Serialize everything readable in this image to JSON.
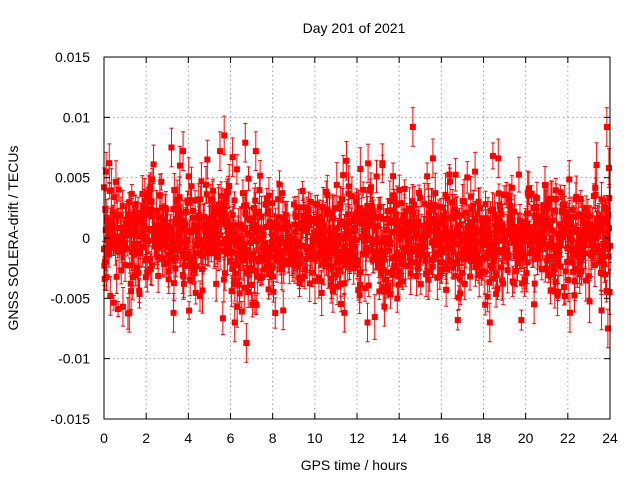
{
  "chart_data": {
    "type": "scatter",
    "title": "Day 201 of 2021",
    "xlabel": "GPS time / hours",
    "ylabel": "GNSS SOLERA-drift / TECUs",
    "xlim": [
      0,
      24
    ],
    "ylim": [
      -0.015,
      0.015
    ],
    "x_ticks": [
      0,
      2,
      4,
      6,
      8,
      10,
      12,
      14,
      16,
      18,
      20,
      22,
      24
    ],
    "x_tick_labels": [
      "0",
      "2",
      "4",
      "6",
      "8",
      "10",
      "12",
      "14",
      "16",
      "18",
      "20",
      "22",
      "24"
    ],
    "y_ticks": [
      -0.015,
      -0.01,
      -0.005,
      0,
      0.005,
      0.01,
      0.015
    ],
    "y_tick_labels": [
      "-0.015",
      "-0.01",
      "-0.005",
      "0",
      "0.005",
      "0.01",
      "0.015"
    ],
    "grid": true,
    "series_color": "#ff0000",
    "marker": "square",
    "error_bars": true,
    "n_points": 1440,
    "noise_std": 0.0022,
    "error_bar_range": [
      0.0006,
      0.0019
    ],
    "highlight_points": [
      {
        "x": 0.0,
        "y": 0.0042
      },
      {
        "x": 0.1,
        "y": 0.0055
      },
      {
        "x": 0.25,
        "y": 0.0062
      },
      {
        "x": 0.3,
        "y": -0.0048
      },
      {
        "x": 0.9,
        "y": -0.0057
      },
      {
        "x": 1.2,
        "y": -0.0062
      },
      {
        "x": 2.35,
        "y": 0.0061
      },
      {
        "x": 3.2,
        "y": 0.0075
      },
      {
        "x": 3.3,
        "y": -0.0062
      },
      {
        "x": 3.6,
        "y": 0.006
      },
      {
        "x": 3.75,
        "y": 0.0072
      },
      {
        "x": 4.9,
        "y": 0.0065
      },
      {
        "x": 5.5,
        "y": 0.0072
      },
      {
        "x": 5.7,
        "y": 0.0085
      },
      {
        "x": 6.1,
        "y": 0.0067
      },
      {
        "x": 6.2,
        "y": -0.007
      },
      {
        "x": 6.7,
        "y": 0.0079
      },
      {
        "x": 6.75,
        "y": -0.0087
      },
      {
        "x": 7.2,
        "y": 0.0072
      },
      {
        "x": 8.5,
        "y": -0.006
      },
      {
        "x": 11.4,
        "y": -0.0062
      },
      {
        "x": 11.5,
        "y": 0.0064
      },
      {
        "x": 12.5,
        "y": -0.007
      },
      {
        "x": 13.2,
        "y": 0.0062
      },
      {
        "x": 13.3,
        "y": -0.0057
      },
      {
        "x": 14.65,
        "y": 0.0092
      },
      {
        "x": 15.6,
        "y": 0.0066
      },
      {
        "x": 17.6,
        "y": 0.0055
      },
      {
        "x": 18.3,
        "y": -0.007
      },
      {
        "x": 18.7,
        "y": 0.0066
      },
      {
        "x": 20.4,
        "y": -0.0055
      },
      {
        "x": 22.1,
        "y": -0.0062
      },
      {
        "x": 23.6,
        "y": -0.006
      },
      {
        "x": 23.85,
        "y": 0.0092
      },
      {
        "x": 23.9,
        "y": -0.0075
      },
      {
        "x": 23.95,
        "y": 0.0058
      }
    ]
  }
}
